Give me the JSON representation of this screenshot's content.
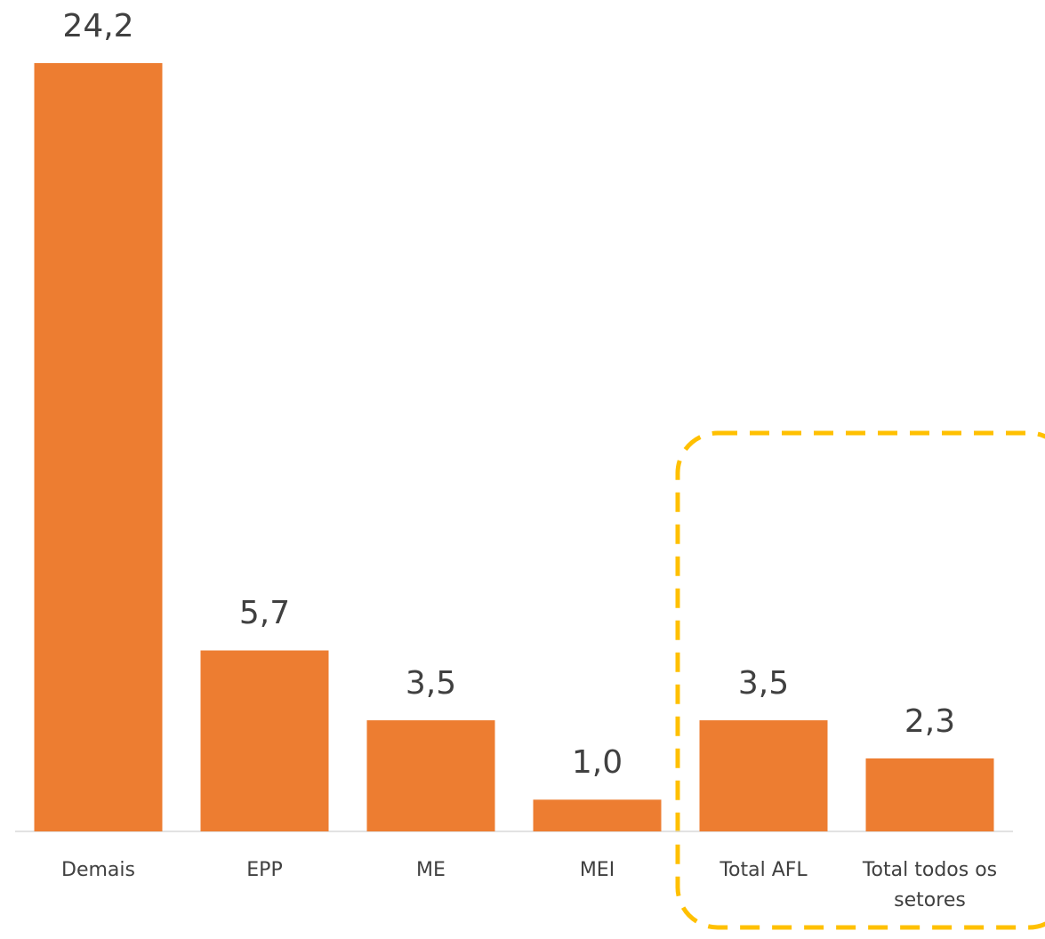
{
  "chart_data": {
    "type": "bar",
    "categories": [
      "Demais",
      "EPP",
      "ME",
      "MEI",
      "Total AFL",
      "Total todos os setores"
    ],
    "values": [
      24.2,
      5.7,
      3.5,
      1.0,
      3.5,
      2.3
    ],
    "value_labels": [
      "24,2",
      "5,7",
      "3,5",
      "1,0",
      "3,5",
      "2,3"
    ],
    "color": "#ED7D31"
  }
}
